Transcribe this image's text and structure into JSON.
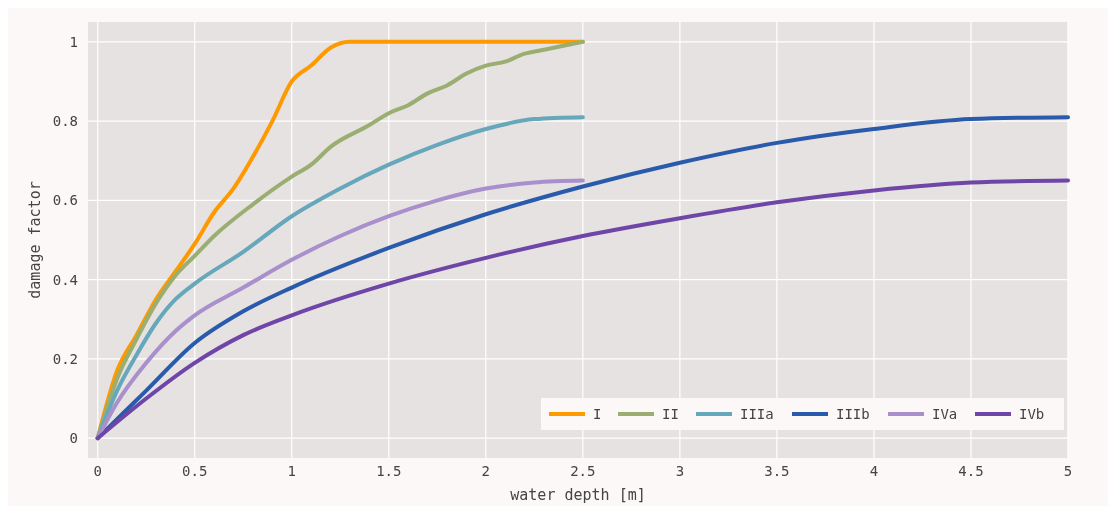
{
  "chart_data": {
    "type": "line",
    "xlabel": "water depth [m]",
    "ylabel": "damage factor",
    "xlim": [
      -0.05,
      5
    ],
    "ylim": [
      -0.05,
      1.05
    ],
    "xticks": [
      0,
      0.5,
      1,
      1.5,
      2,
      2.5,
      3,
      3.5,
      4,
      4.5,
      5
    ],
    "yticks": [
      0,
      0.2,
      0.4,
      0.6,
      0.8,
      1
    ],
    "grid": true,
    "legend": "bottom right",
    "line_style": "solid",
    "series": [
      {
        "name": "I",
        "color": "#ff9900",
        "x": [
          0,
          0.1,
          0.2,
          0.3,
          0.4,
          0.5,
          0.6,
          0.7,
          0.8,
          0.9,
          1,
          1.1,
          1.2,
          1.3,
          1.5,
          2,
          2.5
        ],
        "values": [
          0,
          0.17,
          0.26,
          0.35,
          0.42,
          0.49,
          0.57,
          0.63,
          0.71,
          0.8,
          0.9,
          0.94,
          0.985,
          1,
          1,
          1,
          1
        ]
      },
      {
        "name": "II",
        "color": "#9aae72",
        "x": [
          0,
          0.1,
          0.2,
          0.3,
          0.4,
          0.5,
          0.6,
          0.8,
          1,
          1.1,
          1.2,
          1.4,
          1.5,
          1.6,
          1.7,
          1.8,
          1.9,
          2,
          2.1,
          2.2,
          2.3,
          2.5
        ],
        "values": [
          0,
          0.15,
          0.25,
          0.34,
          0.41,
          0.46,
          0.51,
          0.59,
          0.66,
          0.69,
          0.735,
          0.79,
          0.82,
          0.84,
          0.87,
          0.89,
          0.92,
          0.94,
          0.95,
          0.97,
          0.98,
          1
        ]
      },
      {
        "name": "IIIa",
        "color": "#66a7bb",
        "x": [
          0,
          0.1,
          0.2,
          0.3,
          0.4,
          0.5,
          0.75,
          1,
          1.25,
          1.5,
          1.75,
          2,
          2.25,
          2.5
        ],
        "values": [
          0,
          0.12,
          0.21,
          0.29,
          0.35,
          0.39,
          0.47,
          0.56,
          0.63,
          0.69,
          0.74,
          0.78,
          0.805,
          0.81
        ]
      },
      {
        "name": "IIIb",
        "color": "#2a5aab",
        "x": [
          0,
          0.25,
          0.5,
          0.75,
          1,
          1.5,
          2,
          2.5,
          3,
          3.5,
          4,
          4.5,
          5
        ],
        "values": [
          0,
          0.12,
          0.24,
          0.32,
          0.38,
          0.48,
          0.565,
          0.635,
          0.695,
          0.745,
          0.78,
          0.805,
          0.81
        ]
      },
      {
        "name": "IVa",
        "color": "#a98fcc",
        "x": [
          0,
          0.1,
          0.25,
          0.4,
          0.5,
          0.75,
          1,
          1.25,
          1.5,
          1.75,
          2,
          2.25,
          2.5
        ],
        "values": [
          0,
          0.09,
          0.19,
          0.27,
          0.31,
          0.38,
          0.45,
          0.51,
          0.56,
          0.6,
          0.63,
          0.645,
          0.65
        ]
      },
      {
        "name": "IVb",
        "color": "#6f45a8",
        "x": [
          0,
          0.25,
          0.5,
          0.75,
          1,
          1.5,
          2,
          2.5,
          3,
          3.5,
          4,
          4.5,
          5
        ],
        "values": [
          0,
          0.1,
          0.19,
          0.26,
          0.31,
          0.39,
          0.455,
          0.51,
          0.555,
          0.595,
          0.625,
          0.645,
          0.65
        ]
      }
    ]
  }
}
